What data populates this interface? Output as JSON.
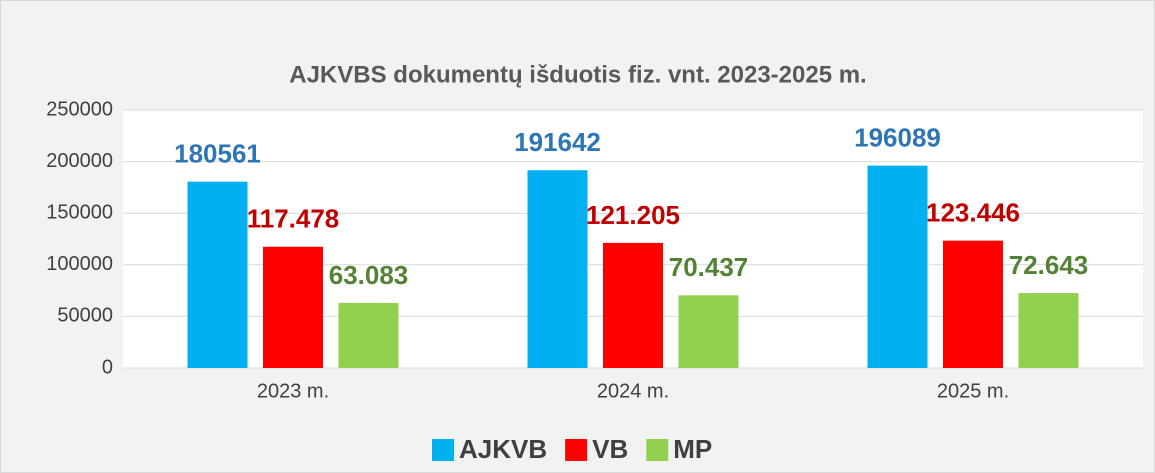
{
  "chart_data": {
    "type": "bar",
    "title": "AJKVBS dokumentų išduotis fiz. vnt. 2023-2025 m.",
    "categories": [
      "2023 m.",
      "2024 m.",
      "2025 m."
    ],
    "series": [
      {
        "name": "AJKVB",
        "color": "#00b0f0",
        "label_color": "#2e75b6",
        "values": [
          180561,
          191642,
          196089
        ],
        "value_labels": [
          "180561",
          "191642",
          "196089"
        ]
      },
      {
        "name": "VB",
        "color": "#ff0000",
        "label_color": "#c00000",
        "values": [
          117478,
          121205,
          123446
        ],
        "value_labels": [
          "117.478",
          "121.205",
          "123.446"
        ]
      },
      {
        "name": "MP",
        "color": "#92d050",
        "label_color": "#548235",
        "values": [
          63083,
          70437,
          72643
        ],
        "value_labels": [
          "63.083",
          "70.437",
          "72.643"
        ]
      }
    ],
    "ylim": [
      0,
      250000
    ],
    "yticks": [
      0,
      50000,
      100000,
      150000,
      200000,
      250000
    ],
    "grid": true,
    "legend": "bottom"
  }
}
